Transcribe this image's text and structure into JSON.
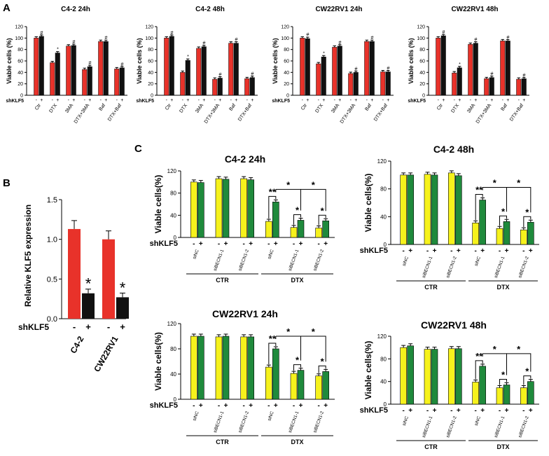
{
  "colors": {
    "red": "#e8322a",
    "black": "#111111",
    "yellow": "#f6f21c",
    "green": "#1f8a3c"
  },
  "panel_labels": {
    "a": "A",
    "b": "B",
    "c": "C"
  },
  "panelA": {
    "ylabel": "Viable cells  (%)",
    "group_label": "shKLF5",
    "pair_signs": [
      "-",
      "+"
    ],
    "yticks": [
      "0",
      "20",
      "40",
      "60",
      "80",
      "100",
      "120"
    ]
  },
  "panelB": {
    "ylabel": "Relative KLF5 expression",
    "group_label": "shKLF5",
    "pair_signs": [
      "-",
      "+"
    ],
    "yticks": [
      "0.0",
      "0.5",
      "1.0",
      "1.5"
    ]
  },
  "panelC": {
    "ylabel": "Viable cells(%)",
    "group_label": "shKLF5",
    "pair_signs": [
      "-",
      "+"
    ],
    "yticks": [
      "0",
      "40",
      "80",
      "120"
    ],
    "ctr_label": "CTR",
    "dtx_label": "DTX",
    "double_star": "**"
  },
  "chart_data": [
    {
      "id": "A1",
      "type": "bar",
      "title": "C4-2 24h",
      "xlabel": "",
      "ylabel": "Viable cells  (%)",
      "ylim": [
        0,
        120
      ],
      "categories": [
        "Ctr",
        "DTX",
        "3MA",
        "DTX+3MA",
        "Baf",
        "DTX+Baf"
      ],
      "series": [
        {
          "name": "shKLF5 -",
          "values": [
            100,
            57,
            86,
            45,
            94,
            46
          ]
        },
        {
          "name": "shKLF5 +",
          "values": [
            103,
            74,
            87,
            50,
            94,
            48
          ]
        }
      ],
      "annotations": [
        "#",
        "*",
        "#",
        "#",
        "#",
        "#"
      ]
    },
    {
      "id": "A2",
      "type": "bar",
      "title": "C4-2 48h",
      "xlabel": "",
      "ylabel": "Viable cells  (%)",
      "ylim": [
        0,
        120
      ],
      "categories": [
        "Ctr",
        "DTX",
        "3MA",
        "DTX+3MA",
        "Baf",
        "DTX+Baf"
      ],
      "series": [
        {
          "name": "shKLF5 -",
          "values": [
            100,
            40,
            82,
            28,
            91,
            29
          ]
        },
        {
          "name": "shKLF5 +",
          "values": [
            103,
            61,
            85,
            30,
            91,
            31
          ]
        }
      ],
      "annotations": [
        "#",
        "*",
        "#",
        "#",
        "#",
        "#"
      ]
    },
    {
      "id": "A3",
      "type": "bar",
      "title": "CW22RV1 24h",
      "xlabel": "",
      "ylabel": "Viable cells  (%)",
      "ylim": [
        0,
        120
      ],
      "categories": [
        "Ctr",
        "DTX",
        "3MA",
        "DTX+3MA",
        "Baf",
        "DTX+Baf"
      ],
      "series": [
        {
          "name": "shKLF5 -",
          "values": [
            100,
            55,
            84,
            38,
            94,
            41
          ]
        },
        {
          "name": "shKLF5 +",
          "values": [
            99,
            67,
            86,
            40,
            94,
            41
          ]
        }
      ],
      "annotations": [
        "#",
        "*",
        "#",
        "#",
        "#",
        "#"
      ]
    },
    {
      "id": "A4",
      "type": "bar",
      "title": "CW22RV1 48h",
      "xlabel": "",
      "ylabel": "Viable cells  (%)",
      "ylim": [
        0,
        120
      ],
      "categories": [
        "Ctr",
        "DTX",
        "3MA",
        "DTX+3MA",
        "Baf",
        "DTX+Baf"
      ],
      "series": [
        {
          "name": "shKLF5 -",
          "values": [
            100,
            39,
            89,
            29,
            95,
            28
          ]
        },
        {
          "name": "shKLF5 +",
          "values": [
            104,
            48,
            91,
            31,
            95,
            29
          ]
        }
      ],
      "annotations": [
        "#",
        "*",
        "#",
        "#",
        "#",
        "#"
      ]
    },
    {
      "id": "B",
      "type": "bar",
      "title": "",
      "xlabel": "",
      "ylabel": "Relative KLF5 expression",
      "ylim": [
        0,
        1.5
      ],
      "categories": [
        "C4-2",
        "CW22RV1"
      ],
      "series": [
        {
          "name": "shKLF5 -",
          "values": [
            1.13,
            1.0
          ]
        },
        {
          "name": "shKLF5 +",
          "values": [
            0.32,
            0.27
          ]
        }
      ],
      "annotations": [
        "*",
        "*"
      ]
    },
    {
      "id": "C1",
      "type": "bar",
      "title": "C4-2 24h",
      "xlabel": "",
      "ylabel": "Viable cells(%)",
      "ylim": [
        0,
        120
      ],
      "categories": [
        "siNC",
        "siBECN1-1",
        "siBECN1-2",
        "siNC",
        "siBECN1-1",
        "siBECN1-2"
      ],
      "category_groups": [
        "CTR",
        "CTR",
        "CTR",
        "DTX",
        "DTX",
        "DTX"
      ],
      "series": [
        {
          "name": "shKLF5 -",
          "values": [
            100,
            106,
            106,
            29,
            18,
            17
          ]
        },
        {
          "name": "shKLF5 +",
          "values": [
            99,
            105,
            104,
            64,
            31,
            30
          ]
        }
      ],
      "significance": [
        "**",
        "*",
        "*",
        "*",
        "*"
      ]
    },
    {
      "id": "C2",
      "type": "bar",
      "title": "C4-2 48h",
      "xlabel": "",
      "ylabel": "Viable cells(%)",
      "ylim": [
        0,
        120
      ],
      "categories": [
        "siNC",
        "siBECN1-1",
        "siBECN1-2",
        "siNC",
        "siBECN1-1",
        "siBECN1-2"
      ],
      "category_groups": [
        "CTR",
        "CTR",
        "CTR",
        "DTX",
        "DTX",
        "DTX"
      ],
      "series": [
        {
          "name": "shKLF5 -",
          "values": [
            100,
            101,
            103,
            31,
            23,
            21
          ]
        },
        {
          "name": "shKLF5 +",
          "values": [
            100,
            100,
            99,
            64,
            33,
            32
          ]
        }
      ],
      "significance": [
        "**",
        "*",
        "*",
        "*",
        "*"
      ]
    },
    {
      "id": "C3",
      "type": "bar",
      "title": "CW22RV1 24h",
      "xlabel": "",
      "ylabel": "Viable cells(%)",
      "ylim": [
        0,
        120
      ],
      "categories": [
        "siNC",
        "siBECN1-1",
        "siBECN1-2",
        "siNC",
        "siBECN1-1",
        "siBECN1-2"
      ],
      "category_groups": [
        "CTR",
        "CTR",
        "CTR",
        "DTX",
        "DTX",
        "DTX"
      ],
      "series": [
        {
          "name": "shKLF5 -",
          "values": [
            100,
            99,
            99,
            51,
            41,
            37
          ]
        },
        {
          "name": "shKLF5 +",
          "values": [
            100,
            100,
            99,
            80,
            46,
            44
          ]
        }
      ],
      "significance": [
        "**",
        "*",
        "*",
        "*",
        "*"
      ]
    },
    {
      "id": "C4",
      "type": "bar",
      "title": "CW22RV1 48h",
      "xlabel": "",
      "ylabel": "Viable cells(%)",
      "ylim": [
        0,
        120
      ],
      "categories": [
        "siNC",
        "siBECN1-1",
        "siBECN1-2",
        "siNC",
        "siBECN1-1",
        "siBECN1-2"
      ],
      "category_groups": [
        "CTR",
        "CTR",
        "CTR",
        "DTX",
        "DTX",
        "DTX"
      ],
      "series": [
        {
          "name": "shKLF5 -",
          "values": [
            100,
            97,
            98,
            39,
            29,
            29
          ]
        },
        {
          "name": "shKLF5 +",
          "values": [
            103,
            97,
            98,
            67,
            34,
            40
          ]
        }
      ],
      "significance": [
        "**",
        "*",
        "*",
        "*",
        "*"
      ]
    }
  ]
}
